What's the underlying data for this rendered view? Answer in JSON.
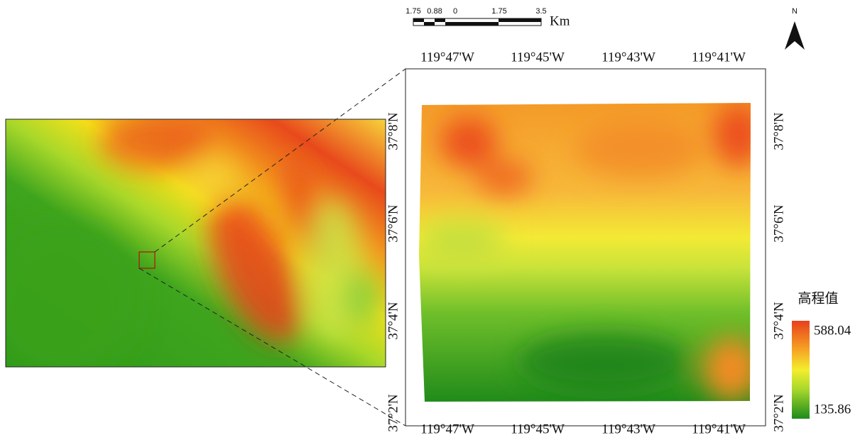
{
  "scale_bar": {
    "labels": [
      1.75,
      0.88,
      0,
      1.75,
      3.5
    ],
    "unit": "Km"
  },
  "north_arrow": {
    "label": "N"
  },
  "graticule": {
    "top_labels": [
      "119°47'W",
      "119°45'W",
      "119°43'W",
      "119°41'W"
    ],
    "bottom_labels": [
      "119°47'W",
      "119°45'W",
      "119°43'W",
      "119°41'W"
    ],
    "left_labels": [
      "37°8'N",
      "37°6'N",
      "37°4'N",
      "37°2'N"
    ],
    "right_labels": [
      "37°8'N",
      "37°6'N",
      "37°4'N",
      "37°2'N"
    ]
  },
  "legend": {
    "title": "高程值",
    "max": 588.04,
    "min": 135.86
  }
}
